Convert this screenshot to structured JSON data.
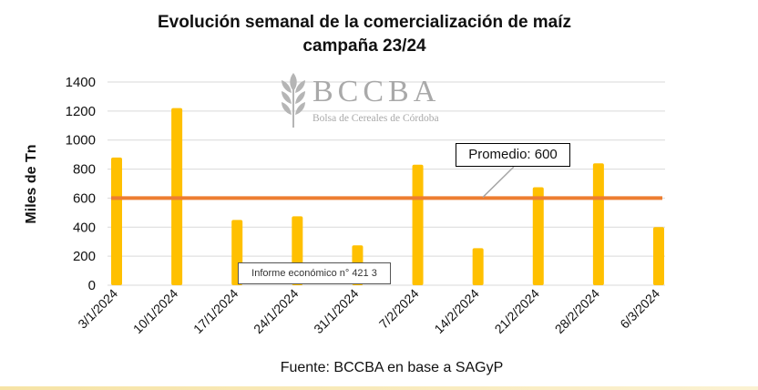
{
  "title_line1": "Evolución semanal de la comercialización de maíz",
  "title_line2": "campaña 23/24",
  "logo": {
    "name": "BCCBA",
    "subtitle": "Bolsa de Cereales de Córdoba"
  },
  "average_box": "Promedio: 600",
  "report_box": "Informe económico n° 421 3",
  "source": "Fuente: BCCBA en base a SAGyP",
  "colors": {
    "bar": "#ffc000",
    "average_line": "#ed7d31",
    "grid": "#d9d9d9",
    "strip": "#f6e3a5"
  },
  "chart_data": {
    "type": "bar",
    "title": "Evolución semanal de la comercialización de maíz campaña 23/24",
    "xlabel": "",
    "ylabel": "Miles de Tn",
    "ylim": [
      0,
      1400
    ],
    "yticks": [
      0,
      200,
      400,
      600,
      800,
      1000,
      1200,
      1400
    ],
    "grid": true,
    "categories": [
      "3/1/2024",
      "10/1/2024",
      "17/1/2024",
      "24/1/2024",
      "31/1/2024",
      "7/2/2024",
      "14/2/2024",
      "21/2/2024",
      "28/2/2024",
      "6/3/2024"
    ],
    "series": [
      {
        "values": [
          880,
          1220,
          450,
          475,
          275,
          830,
          255,
          675,
          840,
          400
        ]
      }
    ],
    "reference_line": {
      "label": "Promedio: 600",
      "value": 600
    }
  }
}
